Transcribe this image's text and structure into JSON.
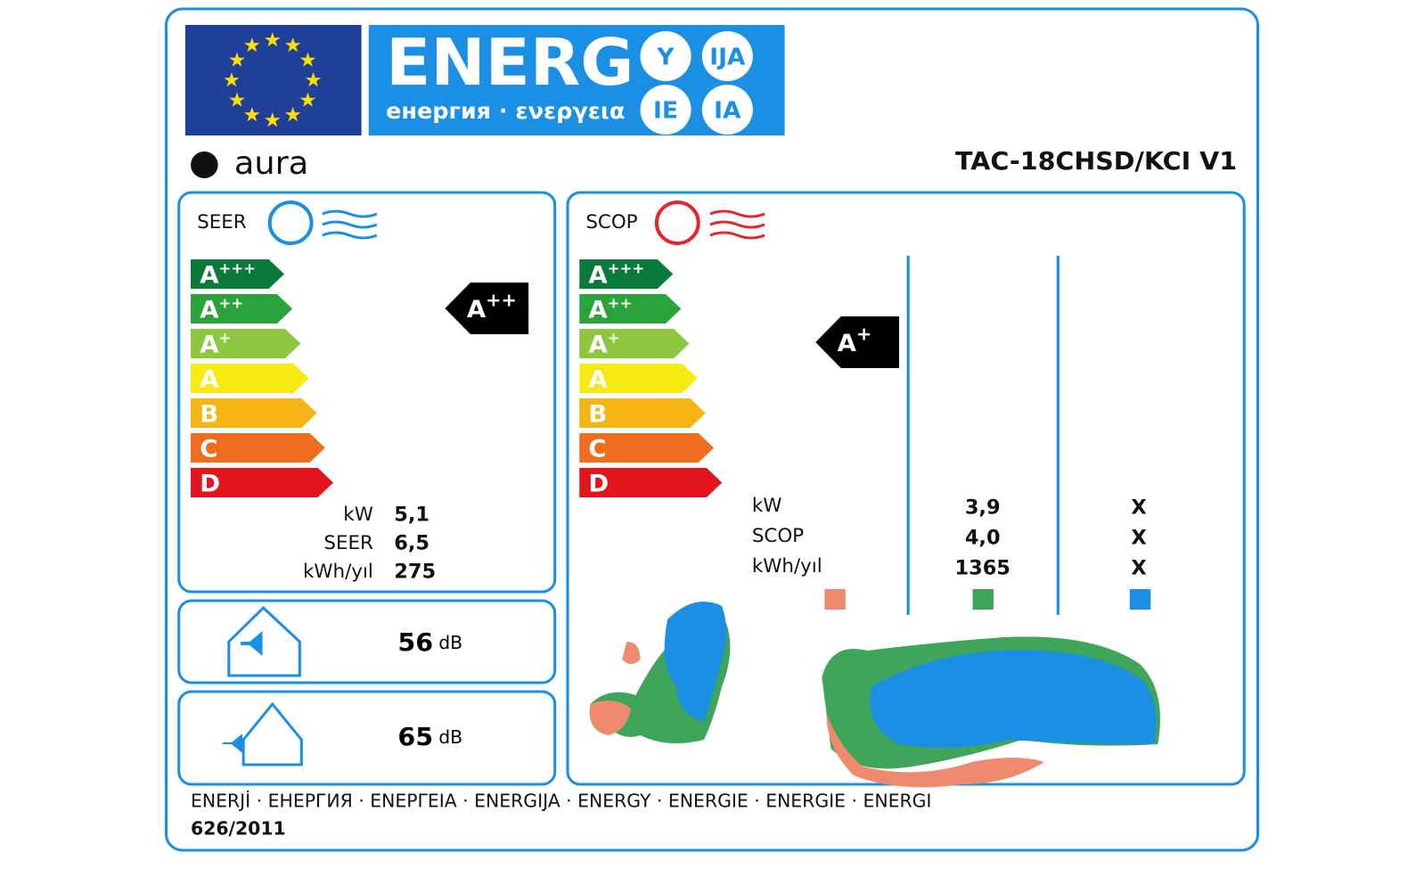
{
  "header": {
    "title": "ENERG",
    "subtitle": "енергия · ενεργεια",
    "suffixes": [
      "Y",
      "IJA",
      "IE",
      "IA"
    ]
  },
  "brand": "aura",
  "model": "TAC-18CHSD/KCI V1",
  "classes": [
    {
      "letter": "A",
      "plus": "+++"
    },
    {
      "letter": "A",
      "plus": "++"
    },
    {
      "letter": "A",
      "plus": "+"
    },
    {
      "letter": "A"
    },
    {
      "letter": "B"
    },
    {
      "letter": "C"
    },
    {
      "letter": "D"
    }
  ],
  "cooling": {
    "label": "SEER",
    "rating": {
      "letter": "A",
      "plus": "++"
    },
    "rows": [
      {
        "label": "kW",
        "value": "5,1"
      },
      {
        "label": "SEER",
        "value": "6,5"
      },
      {
        "label": "kWh/yıl",
        "value": "275"
      }
    ]
  },
  "heating": {
    "label": "SCOP",
    "rating": {
      "letter": "A",
      "plus": "+"
    },
    "row_labels": [
      "kW",
      "SCOP",
      "kWh/yıl"
    ],
    "columns": [
      [
        "3,9",
        "4,0",
        "1365"
      ],
      [
        "X",
        "X",
        "X"
      ]
    ]
  },
  "noise": {
    "indoor": "56",
    "outdoor": "65",
    "unit": "dB"
  },
  "footer": {
    "languages": "ENERJİ · ЕНЕРГИЯ · ΕΝΕΡΓΕΙΑ · ENERGIJA · ENERGY · ENERGIE · ENERGIE · ENERGI",
    "regulation": "626/2011"
  }
}
